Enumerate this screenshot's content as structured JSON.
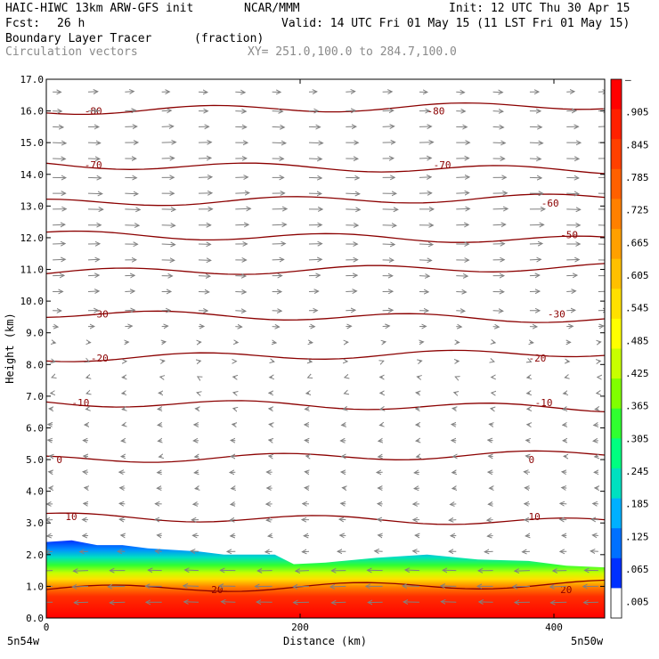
{
  "header": {
    "model": "HAIC-HIWC 13km ARW-GFS init",
    "org": "NCAR/MMM",
    "init": "Init: 12 UTC Thu 30 Apr 15",
    "fcst_label": "Fcst:",
    "fcst_value": "26 h",
    "valid": "Valid: 14 UTC Fri 01 May 15 (11 LST Fri 01 May 15)",
    "field": "Boundary Layer Tracer",
    "units": "(fraction)",
    "vectors": "Circulation vectors",
    "xy": "XY= 251.0,100.0 to 284.7,100.0"
  },
  "chart_data": {
    "type": "heatmap",
    "xlabel": "Distance (km)",
    "ylabel": "Height (km)",
    "xlim": [
      0,
      440
    ],
    "ylim": [
      0,
      17
    ],
    "x_ticks": [
      "0",
      "200",
      "400"
    ],
    "y_ticks": [
      "0.0",
      "1.0",
      "2.0",
      "3.0",
      "4.0",
      "5.0",
      "6.0",
      "7.0",
      "8.0",
      "9.0",
      "10.0",
      "11.0",
      "12.0",
      "13.0",
      "14.0",
      "15.0",
      "16.0",
      "17.0"
    ],
    "left_endpoint": "5n54w",
    "right_endpoint": "5n50w",
    "colorbar": {
      "labels": [
        "–",
        ".905",
        ".845",
        ".785",
        ".725",
        ".665",
        ".605",
        ".545",
        ".485",
        ".425",
        ".365",
        ".305",
        ".245",
        ".185",
        ".125",
        ".065",
        ".005"
      ],
      "colors": [
        "#ff0000",
        "#ff2000",
        "#ff4000",
        "#ff6000",
        "#ff8000",
        "#ffa000",
        "#ffc000",
        "#ffe000",
        "#ffff00",
        "#c8ff00",
        "#80ff00",
        "#30ff30",
        "#00ff80",
        "#00e0c0",
        "#00b0ff",
        "#0070ff",
        "#0030ff",
        "#ffffff"
      ]
    },
    "tracer_top_km": [
      {
        "x": 0,
        "y": 2.4
      },
      {
        "x": 20,
        "y": 2.45
      },
      {
        "x": 40,
        "y": 2.3
      },
      {
        "x": 60,
        "y": 2.3
      },
      {
        "x": 80,
        "y": 2.2
      },
      {
        "x": 100,
        "y": 2.15
      },
      {
        "x": 120,
        "y": 2.1
      },
      {
        "x": 140,
        "y": 2.0
      },
      {
        "x": 160,
        "y": 2.0
      },
      {
        "x": 180,
        "y": 2.0
      },
      {
        "x": 195,
        "y": 1.7
      },
      {
        "x": 220,
        "y": 1.75
      },
      {
        "x": 260,
        "y": 1.9
      },
      {
        "x": 300,
        "y": 2.0
      },
      {
        "x": 340,
        "y": 1.85
      },
      {
        "x": 380,
        "y": 1.8
      },
      {
        "x": 410,
        "y": 1.65
      },
      {
        "x": 440,
        "y": 1.6
      }
    ],
    "temperature_contours": [
      {
        "label": "20",
        "y": 0.9,
        "label_x": [
          130,
          405
        ]
      },
      {
        "label": "10",
        "y": 3.2,
        "label_x": [
          15,
          380
        ]
      },
      {
        "label": "0",
        "y": 5.0,
        "label_x": [
          8,
          380
        ]
      },
      {
        "label": "-10",
        "y": 6.8,
        "label_x": [
          20,
          385
        ]
      },
      {
        "label": "-20",
        "y": 8.2,
        "label_x": [
          35,
          380
        ]
      },
      {
        "label": "-30",
        "y": 9.6,
        "label_x": [
          35,
          395
        ]
      },
      {
        "label": "-40",
        "y": 10.9,
        "label_x": []
      },
      {
        "label": "-50",
        "y": 12.1,
        "label_x": [
          405
        ]
      },
      {
        "label": "-60",
        "y": 13.1,
        "label_x": [
          390
        ]
      },
      {
        "label": "-70",
        "y": 14.3,
        "label_x": [
          30,
          305
        ]
      },
      {
        "label": "-80",
        "y": 16.0,
        "label_x": [
          30,
          300
        ]
      }
    ],
    "vectors": {
      "x_positions_km": [
        5,
        33,
        62,
        91,
        120,
        149,
        178,
        207,
        236,
        265,
        294,
        323,
        352,
        381,
        410,
        435
      ],
      "levels_km": [
        0.5,
        1.0,
        1.5,
        2.1,
        2.6,
        3.1,
        3.6,
        4.1,
        4.6,
        5.1,
        5.6,
        6.1,
        6.6,
        7.1,
        7.6,
        8.1,
        8.7,
        9.2,
        9.7,
        10.3,
        10.8,
        11.3,
        11.8,
        12.4,
        12.9,
        13.4,
        13.9,
        14.5,
        15.0,
        15.5,
        16.0,
        16.6
      ],
      "u_by_level": [
        -2.4,
        -2.6,
        -2.3,
        -1.2,
        -0.8,
        -1.0,
        -0.9,
        -0.7,
        -0.8,
        -0.6,
        -0.7,
        -0.6,
        -0.5,
        -0.4,
        -0.3,
        0.3,
        0.5,
        1.0,
        1.5,
        1.6,
        1.7,
        1.9,
        2.0,
        2.1,
        2.3,
        2.1,
        2.0,
        1.9,
        2.1,
        1.8,
        1.6,
        1.4
      ]
    }
  }
}
